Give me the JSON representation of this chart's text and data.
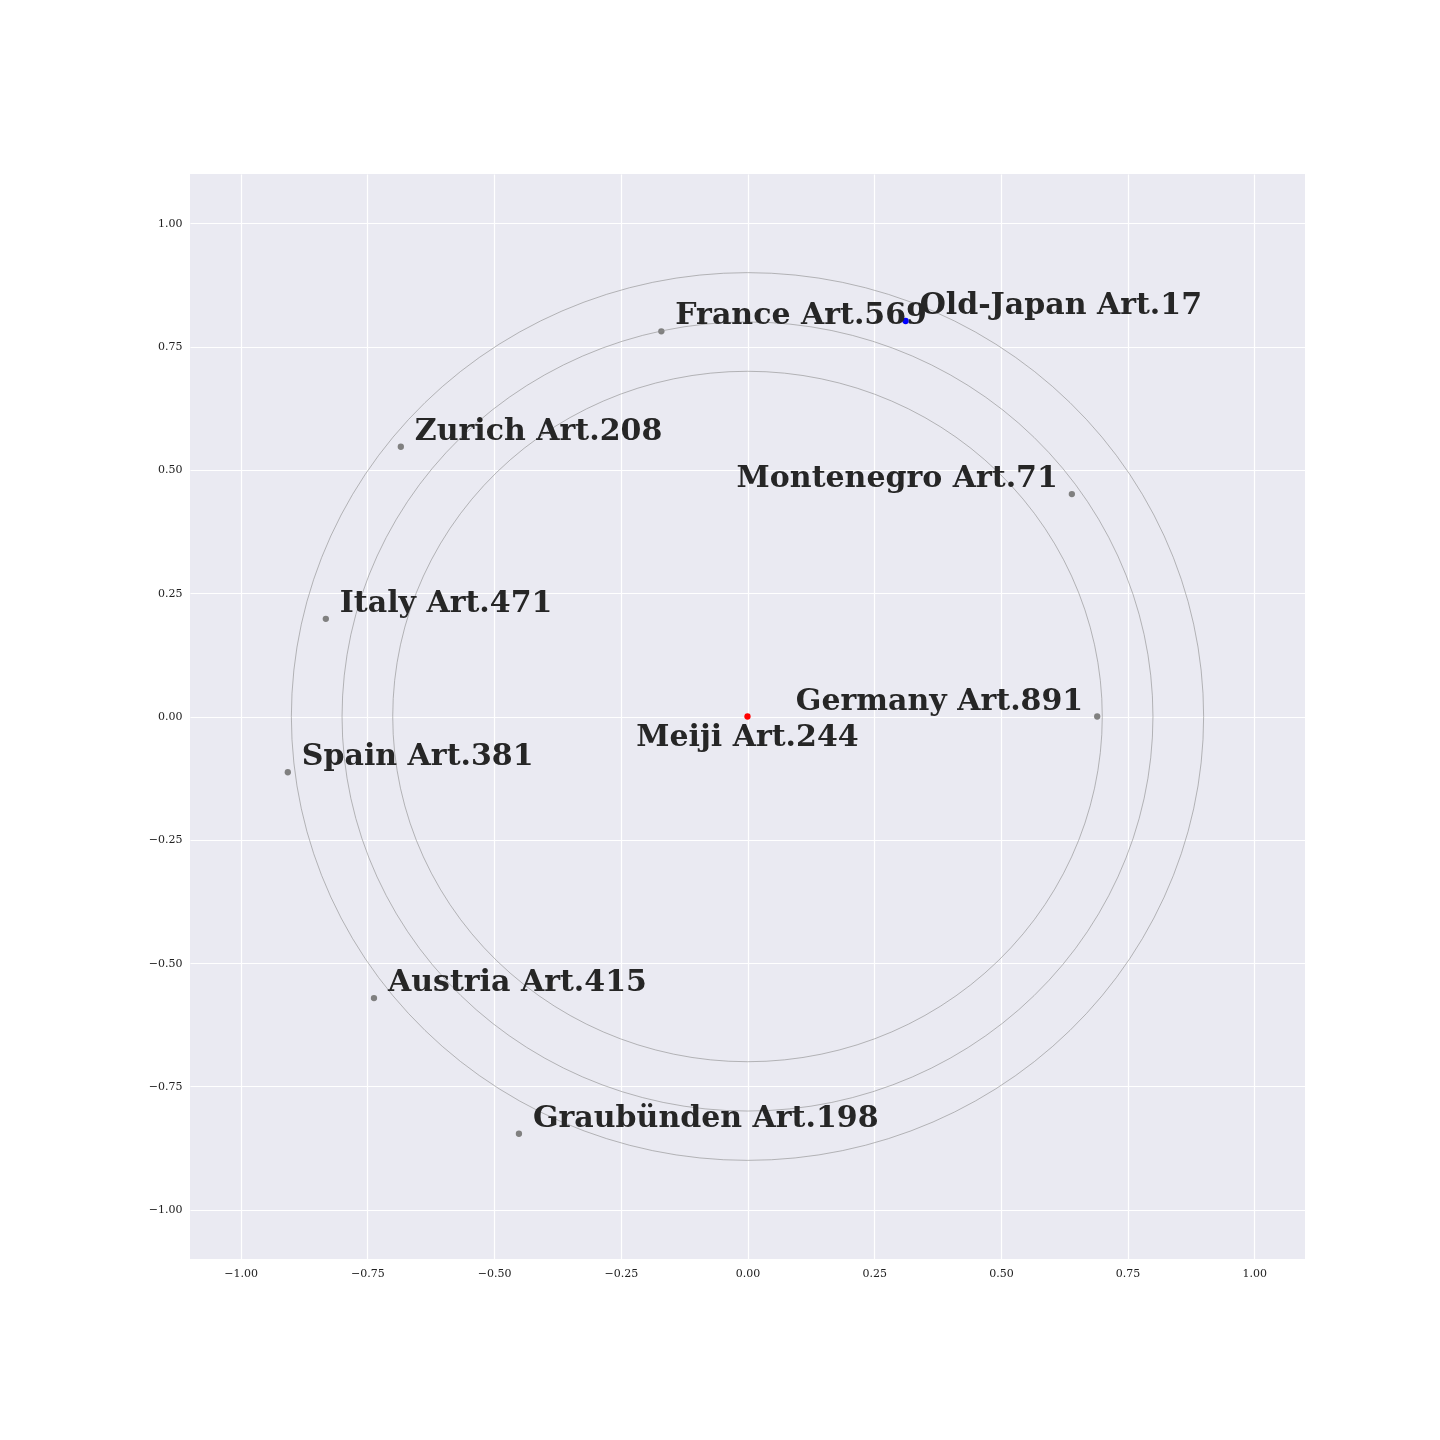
{
  "chart_data": {
    "type": "scatter",
    "xlim": [
      -1.1,
      1.1
    ],
    "ylim": [
      -1.1,
      1.1
    ],
    "xticks": [
      {
        "value": -1,
        "label": "−1.00"
      },
      {
        "value": -0.75,
        "label": "−0.75"
      },
      {
        "value": -0.5,
        "label": "−0.50"
      },
      {
        "value": -0.25,
        "label": "−0.25"
      },
      {
        "value": 0,
        "label": "0.00"
      },
      {
        "value": 0.25,
        "label": "0.25"
      },
      {
        "value": 0.5,
        "label": "0.50"
      },
      {
        "value": 0.75,
        "label": "0.75"
      },
      {
        "value": 1,
        "label": "1.00"
      }
    ],
    "yticks": [
      {
        "value": -1,
        "label": "−1.00"
      },
      {
        "value": -0.75,
        "label": "−0.75"
      },
      {
        "value": -0.5,
        "label": "−0.50"
      },
      {
        "value": -0.25,
        "label": "−0.25"
      },
      {
        "value": 0,
        "label": "0.00"
      },
      {
        "value": 0.25,
        "label": "0.25"
      },
      {
        "value": 0.5,
        "label": "0.50"
      },
      {
        "value": 0.75,
        "label": "0.75"
      },
      {
        "value": 1,
        "label": "1.00"
      }
    ],
    "grid": true,
    "marker": "circle",
    "series": [
      {
        "x": [
          0.312,
          -0.17,
          -0.684,
          0.64,
          -0.832,
          0.69,
          0,
          -0.907,
          -0.737,
          -0.451
        ],
        "values": [
          0.802,
          0.781,
          0.547,
          0.451,
          0.198,
          0,
          0,
          -0.113,
          -0.571,
          -0.846
        ],
        "colors": [
          "#0000ff",
          "#808080",
          "#808080",
          "#808080",
          "#808080",
          "#808080",
          "#ff0000",
          "#808080",
          "#808080",
          "#808080"
        ]
      }
    ],
    "annotations": [
      {
        "text": "Old-Japan Art.17",
        "x": 0.312,
        "y": 0.802
      },
      {
        "text": "France Art.569",
        "x": -0.17,
        "y": 0.781
      },
      {
        "text": "Zurich Art.208",
        "x": -0.684,
        "y": 0.547
      },
      {
        "text": "Montenegro Art.71",
        "x": 0.64,
        "y": 0.451
      },
      {
        "text": "Italy Art.471",
        "x": -0.832,
        "y": 0.198
      },
      {
        "text": "Germany Art.891",
        "x": 0.69,
        "y": 0
      },
      {
        "text": "Meiji Art.244",
        "x": 0,
        "y": 0
      },
      {
        "text": "Spain Art.381",
        "x": -0.907,
        "y": -0.113
      },
      {
        "text": "Austria Art.415",
        "x": -0.737,
        "y": -0.571
      },
      {
        "text": "Graubünden Art.198",
        "x": -0.451,
        "y": -0.846
      }
    ]
  }
}
